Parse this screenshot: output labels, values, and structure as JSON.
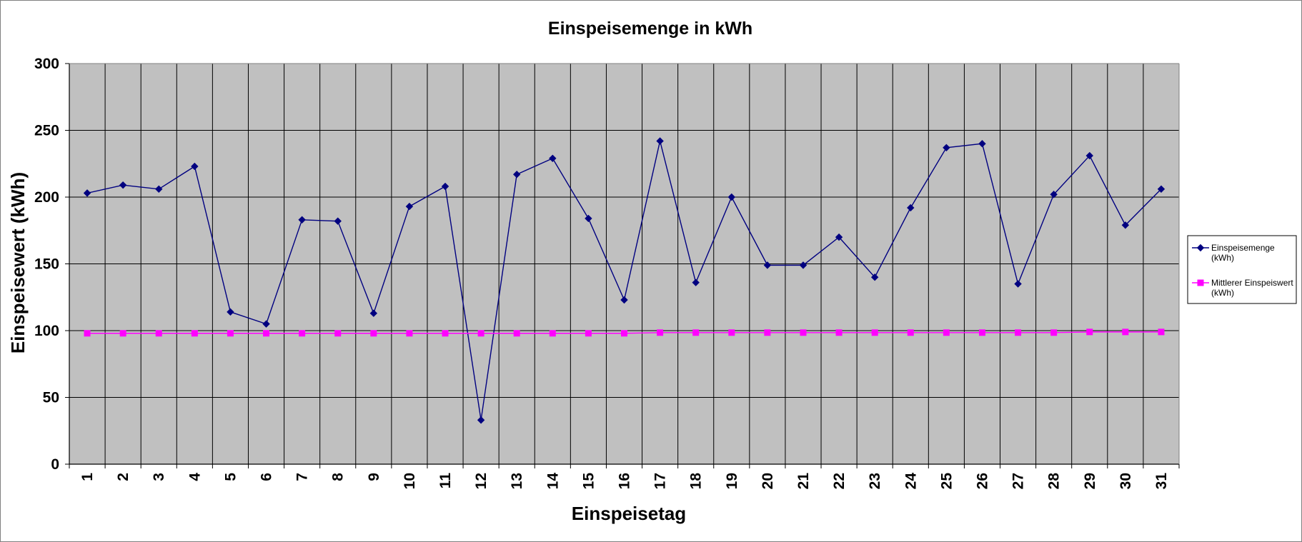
{
  "chart_data": {
    "type": "line",
    "title": "Einspeisemenge in kWh",
    "xlabel": "Einspeisetag",
    "ylabel": "Einspeisewert  (kWh)",
    "ylim": [
      0,
      300
    ],
    "yticks": [
      "0",
      "50",
      "100",
      "150",
      "200",
      "250",
      "300"
    ],
    "grid": true,
    "legend_position": "right",
    "background": "#c0c0c0",
    "categories": [
      "1",
      "2",
      "3",
      "4",
      "5",
      "6",
      "7",
      "8",
      "9",
      "10",
      "11",
      "12",
      "13",
      "14",
      "15",
      "16",
      "17",
      "18",
      "19",
      "20",
      "21",
      "22",
      "23",
      "24",
      "25",
      "26",
      "27",
      "28",
      "29",
      "30",
      "31"
    ],
    "series": [
      {
        "name": "Einspeisemenge (kWh)",
        "legend_lines": [
          "Einspeisemenge",
          "(kWh)"
        ],
        "color": "#000080",
        "marker": "diamond",
        "values": [
          203,
          209,
          206,
          223,
          114,
          105,
          183,
          182,
          113,
          193,
          208,
          33,
          217,
          229,
          184,
          123,
          242,
          136,
          200,
          149,
          149,
          170,
          140,
          192,
          237,
          240,
          135,
          202,
          231,
          179,
          206
        ]
      },
      {
        "name": "Mittlerer Einspeiswert (kWh)",
        "legend_lines": [
          "Mittlerer Einspeiswert",
          "(kWh)"
        ],
        "color": "#ff00ff",
        "marker": "square",
        "values": [
          98,
          98,
          98,
          98,
          98,
          98,
          98,
          98,
          98,
          98,
          98,
          98,
          98,
          98,
          98,
          98,
          98.5,
          98.5,
          98.5,
          98.5,
          98.5,
          98.5,
          98.5,
          98.5,
          98.5,
          98.5,
          98.5,
          98.5,
          99,
          99,
          99
        ]
      }
    ]
  }
}
